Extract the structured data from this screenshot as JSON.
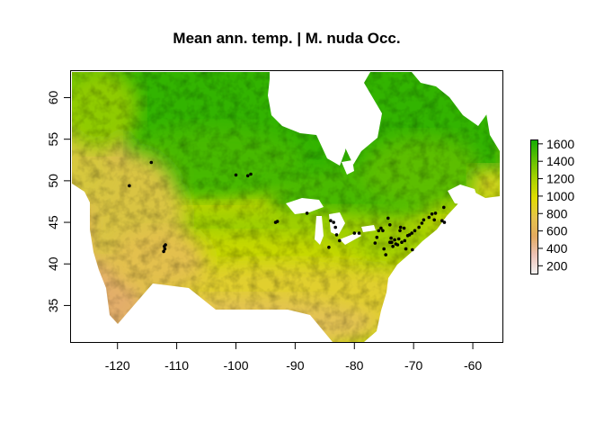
{
  "title": "Mean ann. temp. | M. nuda Occ.",
  "x_ticks": [
    -120,
    -110,
    -100,
    -90,
    -80,
    -70,
    -60
  ],
  "y_ticks": [
    35,
    40,
    45,
    50,
    55,
    60
  ],
  "xlim": [
    -128,
    -55
  ],
  "ylim": [
    30.5,
    63.3
  ],
  "legend": {
    "ticks": [
      200,
      400,
      600,
      800,
      1000,
      1200,
      1400,
      1600
    ],
    "range": [
      100,
      1650
    ],
    "colors": [
      "#f2f2f2",
      "#eec3b7",
      "#e3aa5f",
      "#e6c44a",
      "#e0dc00",
      "#a9d201",
      "#63c102",
      "#18ad03"
    ]
  },
  "occurrences": [
    [
      -114.3,
      52.2
    ],
    [
      -118.0,
      49.4
    ],
    [
      -100.0,
      50.7
    ],
    [
      -98.0,
      50.6
    ],
    [
      -97.5,
      50.8
    ],
    [
      -112.1,
      42.1
    ],
    [
      -112.0,
      41.8
    ],
    [
      -112.2,
      41.5
    ],
    [
      -111.9,
      42.3
    ],
    [
      -93.3,
      45.0
    ],
    [
      -93.0,
      45.1
    ],
    [
      -88.0,
      46.1
    ],
    [
      -84.0,
      45.2
    ],
    [
      -83.5,
      45.0
    ],
    [
      -83.2,
      44.4
    ],
    [
      -83.0,
      43.5
    ],
    [
      -82.5,
      42.8
    ],
    [
      -84.3,
      42.0
    ],
    [
      -80.0,
      43.7
    ],
    [
      -79.2,
      43.7
    ],
    [
      -76.5,
      42.5
    ],
    [
      -76.2,
      43.2
    ],
    [
      -75.9,
      44.0
    ],
    [
      -75.5,
      44.3
    ],
    [
      -75.2,
      44.0
    ],
    [
      -75.0,
      41.8
    ],
    [
      -74.7,
      41.1
    ],
    [
      -74.3,
      45.5
    ],
    [
      -74.0,
      44.7
    ],
    [
      -73.8,
      43.1
    ],
    [
      -73.7,
      42.6
    ],
    [
      -73.5,
      42.1
    ],
    [
      -73.2,
      42.9
    ],
    [
      -73.0,
      42.4
    ],
    [
      -72.7,
      42.3
    ],
    [
      -72.5,
      43.0
    ],
    [
      -72.3,
      44.0
    ],
    [
      -72.2,
      44.4
    ],
    [
      -72.0,
      42.6
    ],
    [
      -71.6,
      44.3
    ],
    [
      -71.5,
      42.8
    ],
    [
      -71.3,
      41.8
    ],
    [
      -71.0,
      43.4
    ],
    [
      -70.7,
      43.5
    ],
    [
      -70.3,
      43.7
    ],
    [
      -70.2,
      41.7
    ],
    [
      -69.8,
      44.0
    ],
    [
      -69.1,
      44.4
    ],
    [
      -68.6,
      44.9
    ],
    [
      -68.3,
      45.3
    ],
    [
      -67.4,
      45.6
    ],
    [
      -66.9,
      46.0
    ],
    [
      -66.5,
      45.3
    ],
    [
      -66.3,
      46.1
    ],
    [
      -65.2,
      45.2
    ],
    [
      -64.8,
      45.0
    ],
    [
      -64.9,
      46.8
    ],
    [
      -74.0,
      42.6
    ]
  ]
}
